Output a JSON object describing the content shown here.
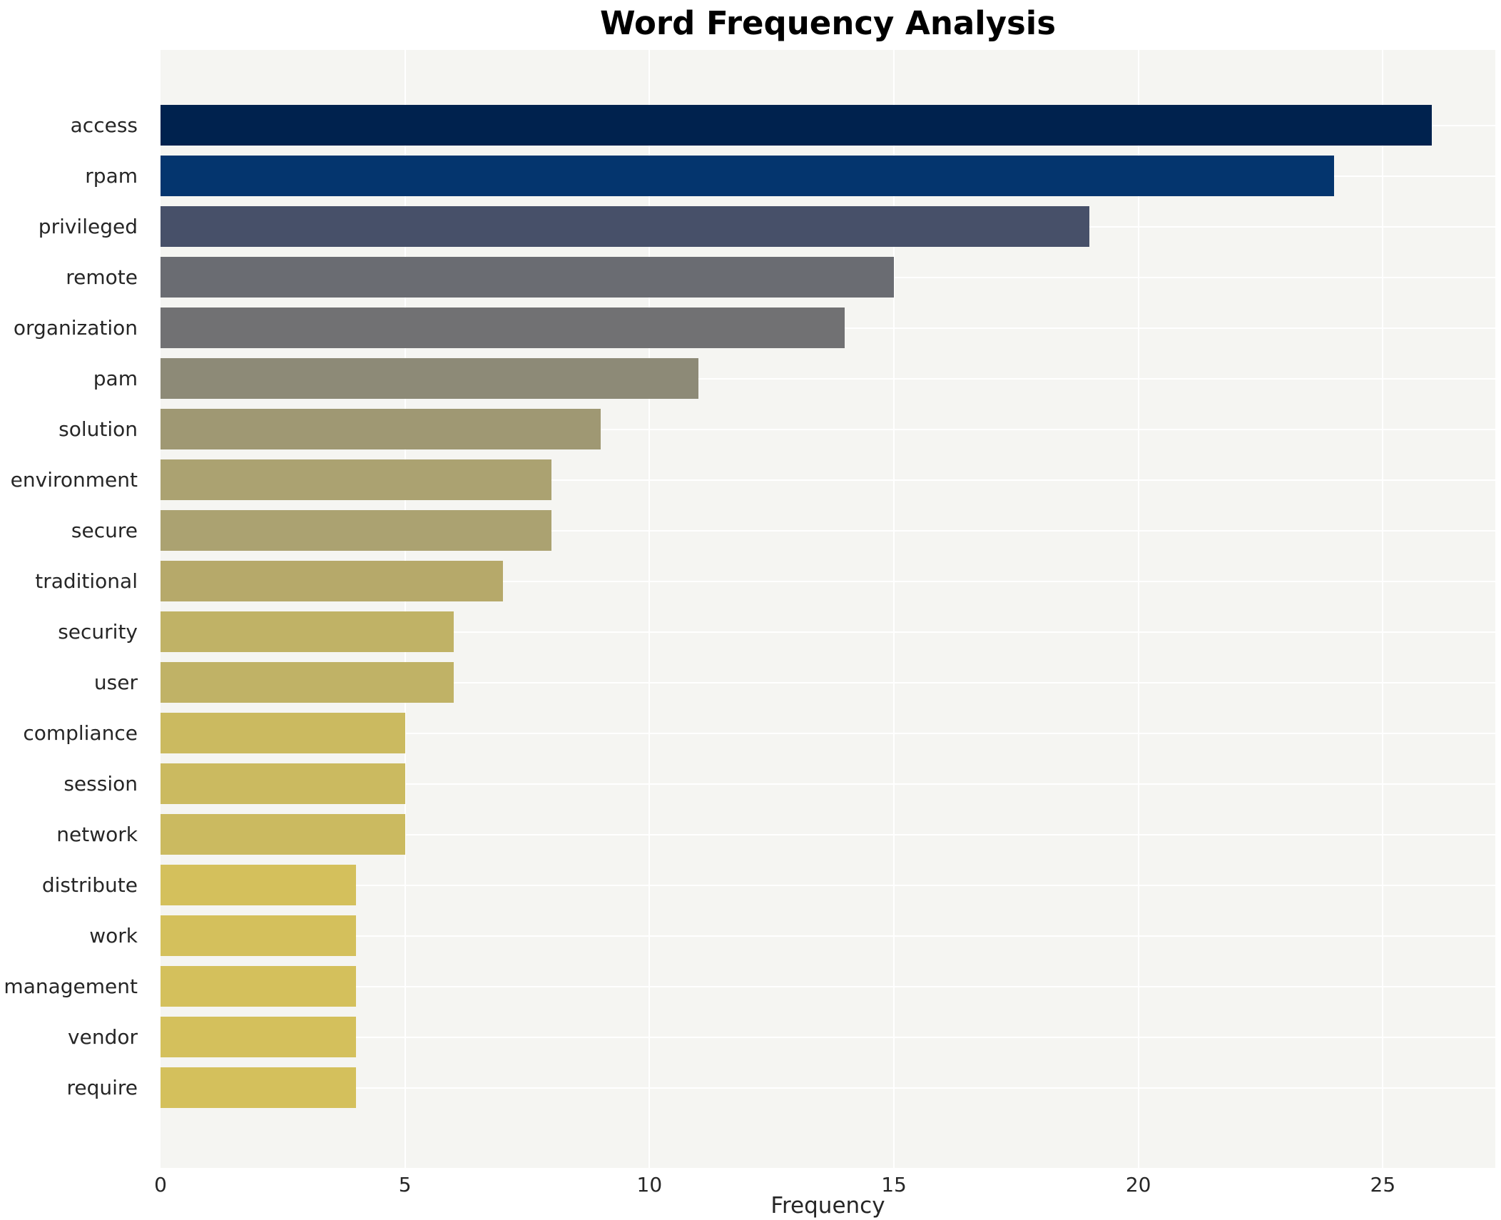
{
  "chart_data": {
    "type": "bar",
    "orientation": "horizontal",
    "title": "Word Frequency Analysis",
    "xlabel": "Frequency",
    "ylabel": "",
    "xlim": [
      0,
      27.3
    ],
    "xticks": [
      0,
      5,
      10,
      15,
      20,
      25
    ],
    "grid": true,
    "legend": "none",
    "plot_background": "#f5f5f2",
    "gridline_color": "#ffffff",
    "categories": [
      "access",
      "rpam",
      "privileged",
      "remote",
      "organization",
      "pam",
      "solution",
      "environment",
      "secure",
      "traditional",
      "security",
      "user",
      "compliance",
      "session",
      "network",
      "distribute",
      "work",
      "management",
      "vendor",
      "require"
    ],
    "values": [
      26,
      24,
      19,
      15,
      14,
      11,
      9,
      8,
      8,
      7,
      6,
      6,
      5,
      5,
      5,
      4,
      4,
      4,
      4,
      4
    ],
    "bar_colors": [
      "#00224e",
      "#04356e",
      "#475069",
      "#6a6c72",
      "#717173",
      "#8d8a77",
      "#9f9873",
      "#aba271",
      "#aba271",
      "#b6a96a",
      "#c0b266",
      "#c0b266",
      "#cbba60",
      "#cbba60",
      "#cbba60",
      "#d4c05c",
      "#d4c05c",
      "#d4c05c",
      "#d4c05c",
      "#d4c05c"
    ]
  }
}
